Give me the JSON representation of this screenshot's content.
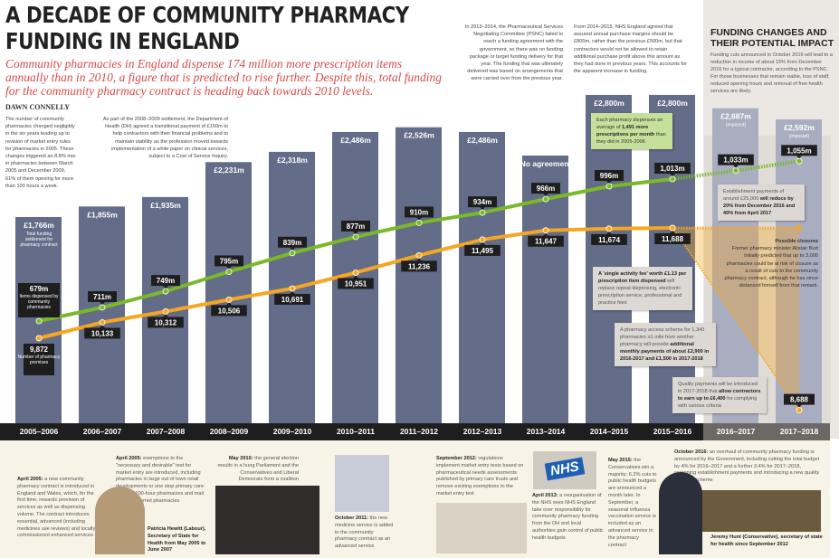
{
  "header": {
    "title": "A DECADE OF COMMUNITY PHARMACY FUNDING IN ENGLAND",
    "standfirst": "Community pharmacies in England dispense 174 million more prescription items annually than in 2010, a figure that is predicted to rise further. Despite this, total funding for the community pharmacy contract is heading back towards 2010 levels.",
    "byline": "DAWN CONNELLY"
  },
  "notes": {
    "n1": "The number of community pharmacies changed negligibly in the six years leading up to revision of market entry rules for pharmacies in 2005. These changes triggered an 8.8% rise in pharmacies between March 2005 and December 2009, 61% of them opening for more than 100 hours a week.",
    "n2": "As part of the 2008–2009 settlement, the Department of Health (DH) agreed a transitional payment of £150m to help contractors with their financial problems and to maintain stability as the profession moved towards implementation of a white paper on clinical services, subject to a Cost of Service Inquiry.",
    "n3": "In 2013–2014, the Pharmaceutical Services Negotiating Committee (PSNC) failed to reach a funding agreement with the government, so there was no funding package or target funding delivery for that year. The funding that was ultimately delivered was based on arrangements that were carried over from the previous year.",
    "n4": "From 2014–2015, NHS England agreed that assured annual purchase margins should be £800m, rather than the previous £500m, but that contractors would not be allowed to retain additional purchase profit above this amount as they had done in previous years. This accounts for the apparent increase in funding."
  },
  "side": {
    "title": "FUNDING CHANGES AND THEIR POTENTIAL IMPACT",
    "text": "Funding cuts announced in October 2016 will lead to a reduction in income of about 15% from December 2016 for a typical contractor, according to the PSNC. For those businesses that remain viable, loss of staff, reduced opening hours and removal of free health services are likely."
  },
  "callouts": {
    "green_a": "Each pharmacy dispenses an average of ",
    "green_b": "1,491 more prescriptions per month",
    "green_c": " than they did in 2005-2006",
    "est_a": "Establishment payments of around £25,000 ",
    "est_b": "will reduce by 20% from December 2016 and 40% from April 2017",
    "clos_title": "Possible closures",
    "clos_text": "Former pharmacy minister Alistair Burt initially predicted that up to 3,000 pharmacies could be at risk of closure as a result of cuts to the community pharmacy contract, although he has since distanced himself from that remark.",
    "saf_b": "A 'single activity fee' worth £1.13 per prescription item dispensed",
    "saf_text": " will replace repeat dispensing, electronic prescription service, professional and practice fees",
    "pas_a": "A pharmacy access scheme for 1,340 pharmacies ≥1 mile from another pharmacy will provide ",
    "pas_b": "additional monthly payments of about £2,900 in 2016-2017 and £1,500 in 2017-2018",
    "qp_a": "Quality payments will be introduced in 2017-2018 that ",
    "qp_b": "allow contractors to earn up to £6,400",
    "qp_c": " for complying with various criteria"
  },
  "chart_data": {
    "type": "bar",
    "categories": [
      "2005–2006",
      "2006–2007",
      "2007–2008",
      "2008–2009",
      "2009–2010",
      "2010–2011",
      "2011–2012",
      "2012–2013",
      "2013–2014",
      "2014–2015",
      "2015–2016",
      "2016–2017",
      "2017–2018"
    ],
    "series": [
      {
        "name": "Total funding settlement for pharmacy contract",
        "type": "bar",
        "unit": "£m",
        "values": [
          1766,
          1855,
          1935,
          2231,
          2318,
          2486,
          2526,
          2486,
          null,
          2800,
          2800,
          2687,
          2592
        ],
        "labels": [
          "£1,766m",
          "£1,855m",
          "£1,935m",
          "£2,231m",
          "£2,318m",
          "£2,486m",
          "£2,526m",
          "£2,486m",
          "No agreement",
          "£2,800m",
          "£2,800m",
          "£2,687m",
          "£2,592m"
        ],
        "sublabels": {
          "11": "(imposed)",
          "12": "(imposed)"
        }
      },
      {
        "name": "Items dispensed by community pharmacies",
        "type": "line",
        "unit": "m",
        "color": "#7ab929",
        "values": [
          679,
          711,
          749,
          795,
          839,
          877,
          910,
          934,
          966,
          996,
          1013,
          1033,
          1055
        ],
        "labels": [
          "679m",
          "711m",
          "749m",
          "795m",
          "839m",
          "877m",
          "910m",
          "934m",
          "966m",
          "996m",
          "1,013m",
          "1,033m",
          "1,055m"
        ]
      },
      {
        "name": "Number of pharmacy premises",
        "type": "line",
        "color": "#f5a623",
        "values": [
          9872,
          10133,
          10312,
          10506,
          10691,
          10951,
          11236,
          11495,
          11647,
          11674,
          11688,
          null,
          8688
        ],
        "labels": [
          "9,872",
          "10,133",
          "10,312",
          "10,506",
          "10,691",
          "10,951",
          "11,236",
          "11,495",
          "11,647",
          "11,674",
          "11,688",
          "",
          "8,688"
        ]
      }
    ],
    "first_bar_caption": "Total funding settlement for pharmacy contract",
    "first_green_caption": "Items dispensed by community pharmacies",
    "first_orange_caption": "Number of pharmacy premises",
    "colors": {
      "bar": "#636c88",
      "bar_future": "#a9adc0",
      "green": "#7ab929",
      "orange": "#f5a623",
      "label_bg": "#1e1e1e"
    }
  },
  "timeline": {
    "e1b": "April 2005:",
    "e1": " a new community pharmacy contract is introduced in England and Wales, which, for the first time, rewards provision of services as well as dispensing volume. The contract introduces essential, advanced (including medicines use reviews) and locally commissioned enhanced services",
    "e2b": "April 2005:",
    "e2": " exemptions to the \"necessary and desirable\" test for market entry are introduced, including pharmacies in large out of town retail developments or one stop primary care centres, 100-hour pharmacies and mail order or internet pharmacies",
    "cap1": "Patricia Hewitt (Labour), Secretary of State for Health from May 2005 to June 2007",
    "e3b": "May 2010:",
    "e3": " the general election results in a hung Parliament and the Conservatives and Liberal Democrats form a coalition",
    "e4b": "October 2011:",
    "e4": " the new medicine service is added to the community pharmacy contract as an advanced service",
    "e5b": "September 2012:",
    "e5": " regulations implement market entry tests based on pharmaceutical needs assessments published by primary care trusts and remove existing exemptions to the market entry test",
    "e6b": "April 2013:",
    "e6": " a reorganisation of the NHS sees NHS England take over responsibility for community pharmacy funding from the DH and local authorities gain control of public health budgets",
    "nhs": "NHS",
    "e7b": "May 2015:",
    "e7": " the Conservatives win a majority; 6.2% cuts to public health budgets are announced a month later. In September, a seasonal influenza vaccination service is included as an advanced service in the pharmacy contract",
    "e8b": "October 2016:",
    "e8": " an overhaul of community pharmacy funding is announced by the Government, including cutting the total budget by 4% for 2016–2017 and a further 3.4% for 2017–2018, scrapping establishment payments and introducing a new quality payment scheme",
    "cap2": "Jeremy Hunt (Conservative), secretary of state for health since September 2012"
  }
}
